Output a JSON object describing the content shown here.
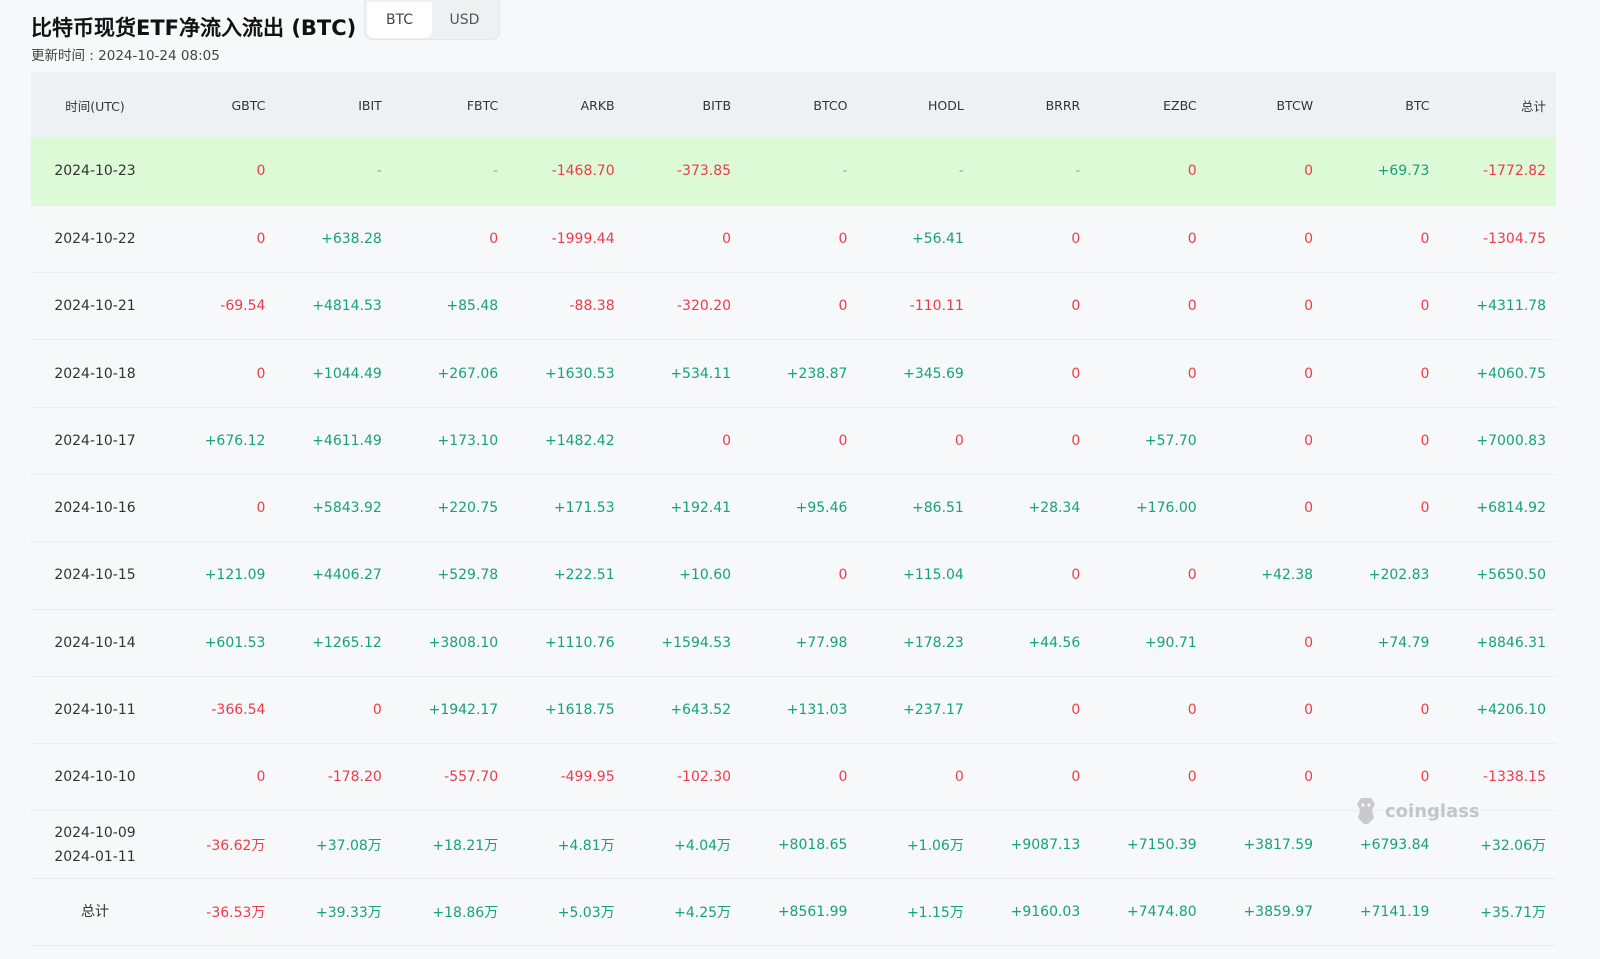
{
  "header": {
    "title": "比特币现货ETF净流入流出 (BTC)",
    "unit_toggle": [
      {
        "label": "BTC",
        "active": true
      },
      {
        "label": "USD",
        "active": false
      }
    ],
    "updated_label": "更新时间 : ",
    "updated_value": "2024-10-24 08:05"
  },
  "table": {
    "columns": [
      "时间(UTC)",
      "GBTC",
      "IBIT",
      "FBTC",
      "ARKB",
      "BITB",
      "BTCO",
      "HODL",
      "BRRR",
      "EZBC",
      "BTCW",
      "BTC",
      "总计"
    ],
    "rows": [
      {
        "date": "2024-10-23",
        "highlight": true,
        "cells": [
          "0",
          "-",
          "-",
          "-1468.70",
          "-373.85",
          "-",
          "-",
          "-",
          "0",
          "0",
          "+69.73",
          "-1772.82"
        ]
      },
      {
        "date": "2024-10-22",
        "cells": [
          "0",
          "+638.28",
          "0",
          "-1999.44",
          "0",
          "0",
          "+56.41",
          "0",
          "0",
          "0",
          "0",
          "-1304.75"
        ]
      },
      {
        "date": "2024-10-21",
        "cells": [
          "-69.54",
          "+4814.53",
          "+85.48",
          "-88.38",
          "-320.20",
          "0",
          "-110.11",
          "0",
          "0",
          "0",
          "0",
          "+4311.78"
        ]
      },
      {
        "date": "2024-10-18",
        "cells": [
          "0",
          "+1044.49",
          "+267.06",
          "+1630.53",
          "+534.11",
          "+238.87",
          "+345.69",
          "0",
          "0",
          "0",
          "0",
          "+4060.75"
        ]
      },
      {
        "date": "2024-10-17",
        "cells": [
          "+676.12",
          "+4611.49",
          "+173.10",
          "+1482.42",
          "0",
          "0",
          "0",
          "0",
          "+57.70",
          "0",
          "0",
          "+7000.83"
        ]
      },
      {
        "date": "2024-10-16",
        "cells": [
          "0",
          "+5843.92",
          "+220.75",
          "+171.53",
          "+192.41",
          "+95.46",
          "+86.51",
          "+28.34",
          "+176.00",
          "0",
          "0",
          "+6814.92"
        ]
      },
      {
        "date": "2024-10-15",
        "cells": [
          "+121.09",
          "+4406.27",
          "+529.78",
          "+222.51",
          "+10.60",
          "0",
          "+115.04",
          "0",
          "0",
          "+42.38",
          "+202.83",
          "+5650.50"
        ]
      },
      {
        "date": "2024-10-14",
        "cells": [
          "+601.53",
          "+1265.12",
          "+3808.10",
          "+1110.76",
          "+1594.53",
          "+77.98",
          "+178.23",
          "+44.56",
          "+90.71",
          "0",
          "+74.79",
          "+8846.31"
        ]
      },
      {
        "date": "2024-10-11",
        "cells": [
          "-366.54",
          "0",
          "+1942.17",
          "+1618.75",
          "+643.52",
          "+131.03",
          "+237.17",
          "0",
          "0",
          "0",
          "0",
          "+4206.10"
        ]
      },
      {
        "date": "2024-10-10",
        "cells": [
          "0",
          "-178.20",
          "-557.70",
          "-499.95",
          "-102.30",
          "0",
          "0",
          "0",
          "0",
          "0",
          "0",
          "-1338.15"
        ]
      },
      {
        "date": "2024-10-09",
        "date2": "2024-01-11",
        "cells": [
          "-36.62万",
          "+37.08万",
          "+18.21万",
          "+4.81万",
          "+4.04万",
          "+8018.65",
          "+1.06万",
          "+9087.13",
          "+7150.39",
          "+3817.59",
          "+6793.84",
          "+32.06万"
        ]
      },
      {
        "date": "总计",
        "cells": [
          "-36.53万",
          "+39.33万",
          "+18.86万",
          "+5.03万",
          "+4.25万",
          "+8561.99",
          "+1.15万",
          "+9160.03",
          "+7474.80",
          "+3859.97",
          "+7141.19",
          "+35.71万"
        ]
      }
    ]
  },
  "watermark": {
    "text": "coinglass",
    "icon": "coinglass-logo-icon"
  },
  "colors": {
    "positive": "#16a17f",
    "negative": "#ef3b4a",
    "highlight_row": "#dcfad5",
    "header_bg": "#eef1f4"
  }
}
